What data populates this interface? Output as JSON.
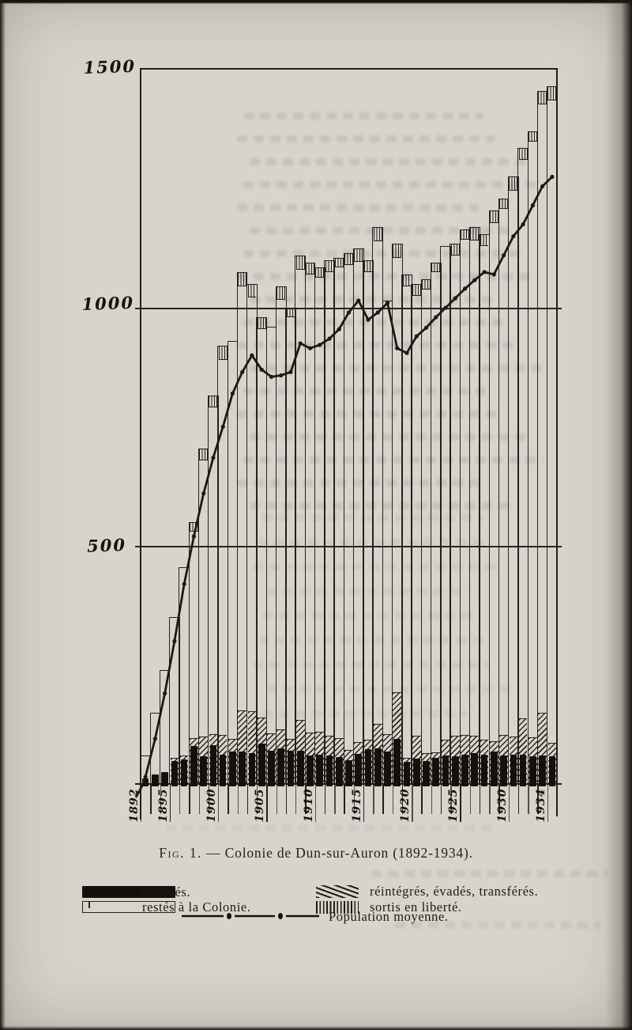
{
  "y_axis": [
    "1500",
    "1000",
    "500"
  ],
  "x_ticks": [
    "1892",
    "1895",
    "1900",
    "1905",
    "1910",
    "1915",
    "1920",
    "1925",
    "1930",
    "1934"
  ],
  "caption": {
    "fig": "Fig. 1.",
    "rest": " — Colonie de Dun-sur-Auron (1892-1934)."
  },
  "legend": {
    "items": [
      {
        "label": "décédés.",
        "swatch": "solid-black"
      },
      {
        "label": "restés à la Colonie.",
        "swatch": "outline"
      },
      {
        "label": "réintégrés, évadés, transférés.",
        "swatch": "diagonal-hatch"
      },
      {
        "label": "sortis en liberté.",
        "swatch": "vertical-hatch"
      },
      {
        "label": "Population moyenne.",
        "swatch": "line-with-dots"
      }
    ]
  },
  "chart_data": {
    "type": "bar",
    "title": "Colonie de Dun-sur-Auron (1892-1934)",
    "ylim": [
      0,
      1500
    ],
    "yticks": [
      500,
      1000,
      1500
    ],
    "grid": "horizontal only",
    "legend_position": "below caption",
    "years": [
      1892,
      1893,
      1894,
      1895,
      1896,
      1897,
      1898,
      1899,
      1900,
      1901,
      1902,
      1903,
      1904,
      1905,
      1906,
      1907,
      1908,
      1909,
      1910,
      1911,
      1912,
      1913,
      1914,
      1915,
      1916,
      1917,
      1918,
      1919,
      1920,
      1921,
      1922,
      1923,
      1924,
      1925,
      1926,
      1927,
      1928,
      1929,
      1930,
      1931,
      1932,
      1933,
      1934
    ],
    "series": [
      {
        "name": "restés à la Colonie (sommet des barres, effectif total)",
        "values": [
          60,
          150,
          240,
          350,
          455,
          550,
          705,
          815,
          920,
          930,
          1075,
          1050,
          980,
          960,
          1045,
          1000,
          1110,
          1095,
          1085,
          1100,
          1105,
          1115,
          1125,
          1100,
          1170,
          1015,
          1135,
          1070,
          1050,
          1060,
          1095,
          1130,
          1135,
          1165,
          1170,
          1155,
          1205,
          1230,
          1275,
          1335,
          1370,
          1455,
          1465
        ]
      },
      {
        "name": "sortis en liberté (segment hachuré vertical au sommet)",
        "values": [
          0,
          0,
          0,
          0,
          0,
          20,
          25,
          25,
          30,
          0,
          30,
          28,
          25,
          0,
          28,
          20,
          30,
          25,
          22,
          25,
          20,
          25,
          28,
          25,
          30,
          0,
          30,
          25,
          25,
          22,
          20,
          0,
          25,
          22,
          28,
          25,
          28,
          22,
          30,
          25,
          22,
          28,
          30
        ]
      },
      {
        "name": "réintégrés, évadés, transférés (hachures diagonales)",
        "values": [
          0,
          0,
          0,
          55,
          60,
          97,
          99,
          105,
          103,
          95,
          155,
          152,
          140,
          107,
          115,
          95,
          135,
          108,
          110,
          102,
          97,
          72,
          88,
          93,
          127,
          105,
          192,
          55,
          102,
          65,
          67,
          93,
          102,
          103,
          102,
          93,
          90,
          103,
          100,
          138,
          98,
          150,
          86
        ]
      },
      {
        "name": "décédés (barres noires)",
        "values": [
          12,
          20,
          25,
          48,
          52,
          80,
          58,
          82,
          62,
          68,
          68,
          65,
          85,
          70,
          75,
          70,
          70,
          60,
          62,
          60,
          57,
          50,
          63,
          73,
          75,
          68,
          95,
          47,
          53,
          48,
          55,
          60,
          58,
          62,
          65,
          62,
          68,
          60,
          61,
          62,
          58,
          60,
          58
        ]
      },
      {
        "name": "Population moyenne (courbe)",
        "values": [
          15,
          95,
          190,
          300,
          420,
          520,
          610,
          685,
          750,
          820,
          865,
          900,
          870,
          855,
          858,
          865,
          925,
          915,
          922,
          935,
          955,
          990,
          1015,
          975,
          990,
          1010,
          915,
          905,
          940,
          958,
          980,
          1000,
          1020,
          1040,
          1058,
          1075,
          1070,
          1110,
          1150,
          1175,
          1215,
          1255,
          1275
        ]
      }
    ]
  }
}
